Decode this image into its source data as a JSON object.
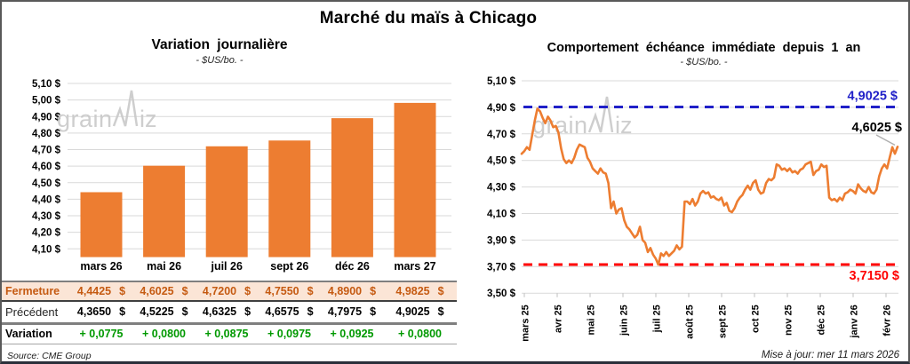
{
  "title": "Marché du maïs à Chicago",
  "source": "Source: CME Group",
  "updated": "Mise à jour: mer 11 mars 2026",
  "watermark": "grainwiz",
  "colors": {
    "bar": "#ED7D31",
    "line": "#ED7D31",
    "grid": "#D9D9D9",
    "max_line": "#2020C8",
    "min_line": "#FF0000",
    "last_label": "#000000",
    "close_text": "#C55A11",
    "close_bg": "#FBE5D6",
    "variation_text": "#009900",
    "watermark_gray": "#C9C9C9"
  },
  "chart_data": [
    {
      "type": "bar",
      "title": "Variation journalière",
      "subtitle": "- $US/bo. -",
      "categories": [
        "mars 26",
        "mai 26",
        "juil 26",
        "sept 26",
        "déc 26",
        "mars 27"
      ],
      "values": [
        4.4425,
        4.6025,
        4.72,
        4.755,
        4.89,
        4.9825
      ],
      "ylim": [
        4.05,
        5.1
      ],
      "yticks": [
        5.1,
        5.0,
        4.9,
        4.8,
        4.7,
        4.6,
        4.5,
        4.4,
        4.3,
        4.2,
        4.1
      ],
      "ytick_suffix": " $",
      "grid": true,
      "legend": "none"
    },
    {
      "type": "line",
      "title": "Comportement échéance immédiate depuis 1 an",
      "subtitle": "- $US/bo. -",
      "x_labels": [
        "mars 25",
        "avr 25",
        "mai 25",
        "juin 25",
        "juil 25",
        "août 25",
        "sept 25",
        "oct 25",
        "nov 25",
        "déc 25",
        "janv 26",
        "févr 26"
      ],
      "values": [
        4.55,
        4.57,
        4.6,
        4.58,
        4.69,
        4.8,
        4.89,
        4.87,
        4.82,
        4.78,
        4.83,
        4.8,
        4.75,
        4.76,
        4.71,
        4.59,
        4.51,
        4.48,
        4.5,
        4.48,
        4.52,
        4.58,
        4.62,
        4.61,
        4.6,
        4.52,
        4.49,
        4.44,
        4.42,
        4.4,
        4.44,
        4.41,
        4.4,
        4.33,
        4.14,
        4.19,
        4.1,
        4.13,
        4.14,
        4.05,
        4.0,
        3.98,
        3.95,
        3.92,
        3.94,
        4.0,
        3.9,
        3.88,
        3.81,
        3.84,
        3.79,
        3.76,
        3.715,
        3.8,
        3.78,
        3.81,
        3.78,
        3.8,
        3.82,
        3.86,
        3.83,
        3.85,
        4.19,
        4.19,
        4.17,
        4.21,
        4.16,
        4.19,
        4.25,
        4.27,
        4.25,
        4.26,
        4.22,
        4.23,
        4.21,
        4.2,
        4.22,
        4.16,
        4.18,
        4.12,
        4.11,
        4.14,
        4.19,
        4.22,
        4.24,
        4.28,
        4.31,
        4.28,
        4.33,
        4.35,
        4.28,
        4.25,
        4.26,
        4.33,
        4.36,
        4.35,
        4.37,
        4.47,
        4.46,
        4.43,
        4.44,
        4.42,
        4.44,
        4.41,
        4.42,
        4.4,
        4.43,
        4.44,
        4.47,
        4.48,
        4.49,
        4.39,
        4.42,
        4.43,
        4.47,
        4.45,
        4.46,
        4.22,
        4.2,
        4.21,
        4.19,
        4.22,
        4.2,
        4.25,
        4.26,
        4.28,
        4.27,
        4.25,
        4.32,
        4.29,
        4.27,
        4.26,
        4.3,
        4.26,
        4.25,
        4.28,
        4.38,
        4.44,
        4.47,
        4.44,
        4.52,
        4.6,
        4.55,
        4.6025
      ],
      "ylim": [
        3.5,
        5.1
      ],
      "yticks": [
        5.1,
        4.9,
        4.7,
        4.5,
        4.3,
        4.1,
        3.9,
        3.7,
        3.5
      ],
      "ytick_suffix": " $",
      "grid": true,
      "legend": "none",
      "annotations": {
        "max": {
          "value": 4.9025,
          "label": "4,9025 $",
          "style": "dashed"
        },
        "last": {
          "value": 4.6025,
          "label": "4,6025 $",
          "style": "callout"
        },
        "min": {
          "value": 3.715,
          "label": "3,7150 $",
          "style": "dashed"
        }
      }
    }
  ],
  "table": {
    "col_headers": [
      "mars 26",
      "mai 26",
      "juil 26",
      "sept 26",
      "déc 26",
      "mars 27"
    ],
    "rows": [
      {
        "label": "Fermeture",
        "values": [
          "4,4425",
          "4,6025",
          "4,7200",
          "4,7550",
          "4,8900",
          "4,9825"
        ],
        "suffix": "$",
        "style": "close"
      },
      {
        "label": "Précédent",
        "values": [
          "4,3650",
          "4,5225",
          "4,6325",
          "4,6575",
          "4,7975",
          "4,9025"
        ],
        "suffix": "$",
        "style": "prev"
      },
      {
        "label": "Variation",
        "values": [
          "+ 0,0775",
          "+ 0,0800",
          "+ 0,0875",
          "+ 0,0975",
          "+ 0,0925",
          "+ 0,0800"
        ],
        "suffix": "",
        "style": "var"
      }
    ]
  }
}
